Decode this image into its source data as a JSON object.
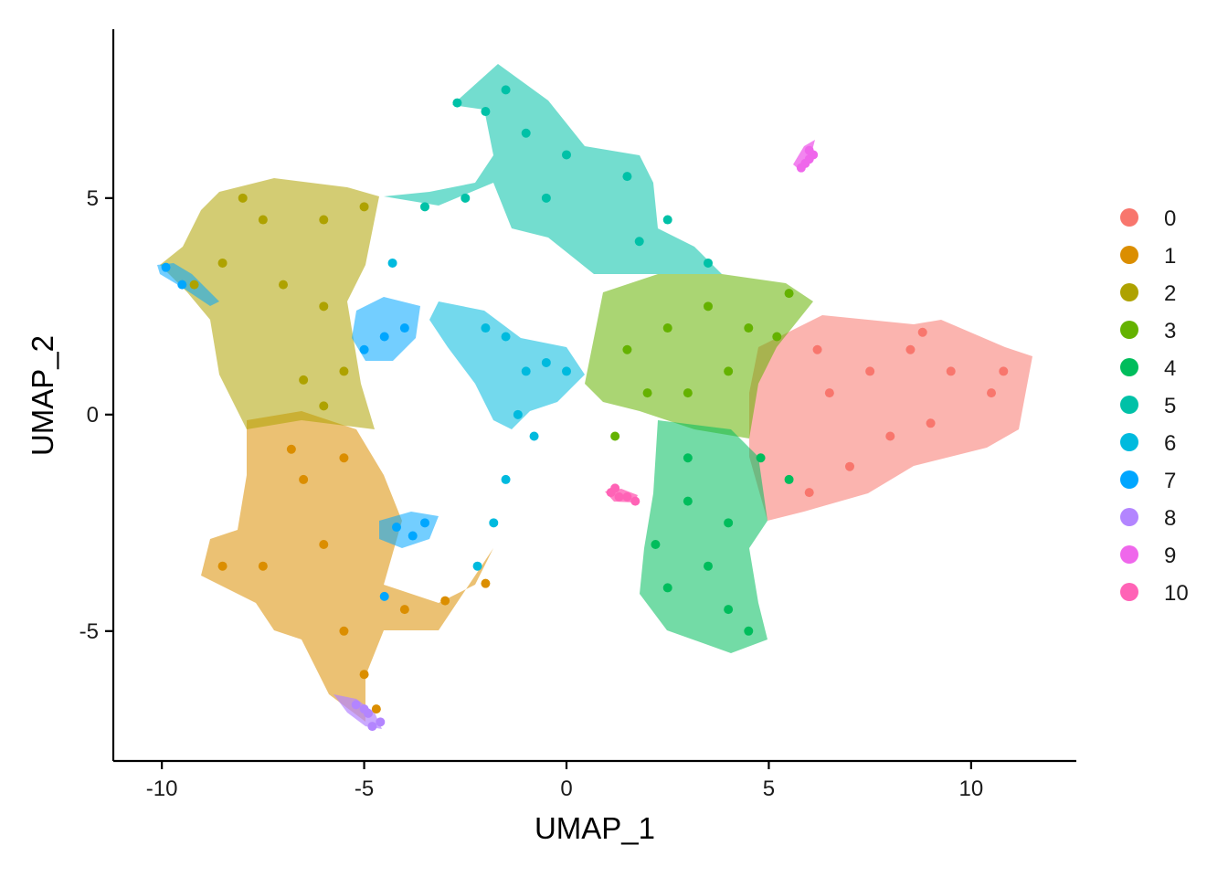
{
  "chart_data": {
    "type": "scatter",
    "title": "",
    "xlabel": "UMAP_1",
    "ylabel": "UMAP_2",
    "xlim": [
      -11.2,
      12.6
    ],
    "ylim": [
      -8.0,
      8.9
    ],
    "x_ticks": [
      -10,
      -5,
      0,
      5,
      10
    ],
    "x_tick_labels": [
      "-10",
      "-5",
      "0",
      "5",
      "10"
    ],
    "y_ticks": [
      -5,
      0,
      5
    ],
    "y_tick_labels": [
      "-5",
      "0",
      "5"
    ],
    "grid": false,
    "legend_position": "right",
    "legend_title": "",
    "series": [
      {
        "name": "0",
        "color": "#F8766D",
        "points": [
          [
            6.5,
            0.5
          ],
          [
            7.5,
            1.0
          ],
          [
            8.5,
            1.5
          ],
          [
            9.5,
            1.0
          ],
          [
            10.5,
            0.5
          ],
          [
            8.0,
            -0.5
          ],
          [
            9.0,
            -0.2
          ],
          [
            7.0,
            -1.2
          ],
          [
            6.0,
            -1.8
          ],
          [
            10.8,
            1.0
          ],
          [
            8.8,
            1.9
          ],
          [
            6.2,
            1.5
          ]
        ]
      },
      {
        "name": "1",
        "color": "#DB8E00",
        "points": [
          [
            -6.5,
            -1.5
          ],
          [
            -6.0,
            -3.0
          ],
          [
            -7.5,
            -3.5
          ],
          [
            -8.5,
            -3.5
          ],
          [
            -5.5,
            -5.0
          ],
          [
            -5.0,
            -6.0
          ],
          [
            -5.5,
            -1.0
          ],
          [
            -6.8,
            -0.8
          ],
          [
            -4.0,
            -4.5
          ],
          [
            -3.0,
            -4.3
          ],
          [
            -2.0,
            -3.9
          ],
          [
            -4.7,
            -6.8
          ]
        ]
      },
      {
        "name": "2",
        "color": "#AEA200",
        "points": [
          [
            -7.5,
            4.5
          ],
          [
            -6.0,
            4.5
          ],
          [
            -8.5,
            3.5
          ],
          [
            -7.0,
            3.0
          ],
          [
            -6.0,
            2.5
          ],
          [
            -5.5,
            1.0
          ],
          [
            -6.5,
            0.8
          ],
          [
            -9.2,
            3.0
          ],
          [
            -5.0,
            4.8
          ],
          [
            -8.0,
            5.0
          ],
          [
            -6.0,
            0.2
          ]
        ]
      },
      {
        "name": "3",
        "color": "#64B200",
        "points": [
          [
            1.5,
            1.5
          ],
          [
            2.5,
            2.0
          ],
          [
            3.5,
            2.5
          ],
          [
            4.5,
            2.0
          ],
          [
            3.0,
            0.5
          ],
          [
            2.0,
            0.5
          ],
          [
            5.5,
            2.8
          ],
          [
            4.0,
            1.0
          ],
          [
            1.2,
            -0.5
          ],
          [
            5.2,
            1.8
          ]
        ]
      },
      {
        "name": "4",
        "color": "#00BD5C",
        "points": [
          [
            3.0,
            -2.0
          ],
          [
            4.0,
            -2.5
          ],
          [
            3.5,
            -3.5
          ],
          [
            2.5,
            -4.0
          ],
          [
            4.0,
            -4.5
          ],
          [
            4.5,
            -5.0
          ],
          [
            3.0,
            -1.0
          ],
          [
            5.5,
            -1.5
          ],
          [
            2.2,
            -3.0
          ],
          [
            4.8,
            -1.0
          ]
        ]
      },
      {
        "name": "5",
        "color": "#00C1A7",
        "points": [
          [
            -2.0,
            7.0
          ],
          [
            -1.5,
            7.5
          ],
          [
            -1.0,
            6.5
          ],
          [
            0.0,
            6.0
          ],
          [
            1.5,
            5.5
          ],
          [
            2.5,
            4.5
          ],
          [
            3.5,
            3.5
          ],
          [
            -0.5,
            5.0
          ],
          [
            -2.5,
            5.0
          ],
          [
            -3.5,
            4.8
          ],
          [
            -2.7,
            7.2
          ],
          [
            1.8,
            4.0
          ]
        ]
      },
      {
        "name": "6",
        "color": "#00BADE",
        "points": [
          [
            -1.5,
            1.8
          ],
          [
            -1.0,
            1.0
          ],
          [
            -0.5,
            1.2
          ],
          [
            0.0,
            1.0
          ],
          [
            -2.0,
            2.0
          ],
          [
            -1.2,
            0.0
          ],
          [
            -1.5,
            -1.5
          ],
          [
            -1.8,
            -2.5
          ],
          [
            -2.2,
            -3.5
          ],
          [
            -4.3,
            3.5
          ],
          [
            -0.8,
            -0.5
          ]
        ]
      },
      {
        "name": "7",
        "color": "#00A6FF",
        "points": [
          [
            -4.5,
            1.8
          ],
          [
            -5.0,
            1.5
          ],
          [
            -4.0,
            2.0
          ],
          [
            -3.8,
            -2.8
          ],
          [
            -4.2,
            -2.6
          ],
          [
            -3.5,
            -2.5
          ],
          [
            -9.9,
            3.4
          ],
          [
            -9.5,
            3.0
          ],
          [
            -4.5,
            -4.2
          ]
        ]
      },
      {
        "name": "8",
        "color": "#B385FF",
        "points": [
          [
            -5.2,
            -6.7
          ],
          [
            -4.9,
            -6.9
          ],
          [
            -4.6,
            -7.1
          ],
          [
            -4.8,
            -7.2
          ],
          [
            -5.0,
            -6.8
          ]
        ]
      },
      {
        "name": "9",
        "color": "#EF67EB",
        "points": [
          [
            5.9,
            5.8
          ],
          [
            6.0,
            5.9
          ],
          [
            6.1,
            6.0
          ],
          [
            6.0,
            6.1
          ],
          [
            5.8,
            5.7
          ]
        ]
      },
      {
        "name": "10",
        "color": "#FF63B6",
        "points": [
          [
            1.1,
            -1.8
          ],
          [
            1.3,
            -1.9
          ],
          [
            1.5,
            -1.9
          ],
          [
            1.7,
            -2.0
          ],
          [
            1.2,
            -1.7
          ]
        ]
      }
    ]
  }
}
